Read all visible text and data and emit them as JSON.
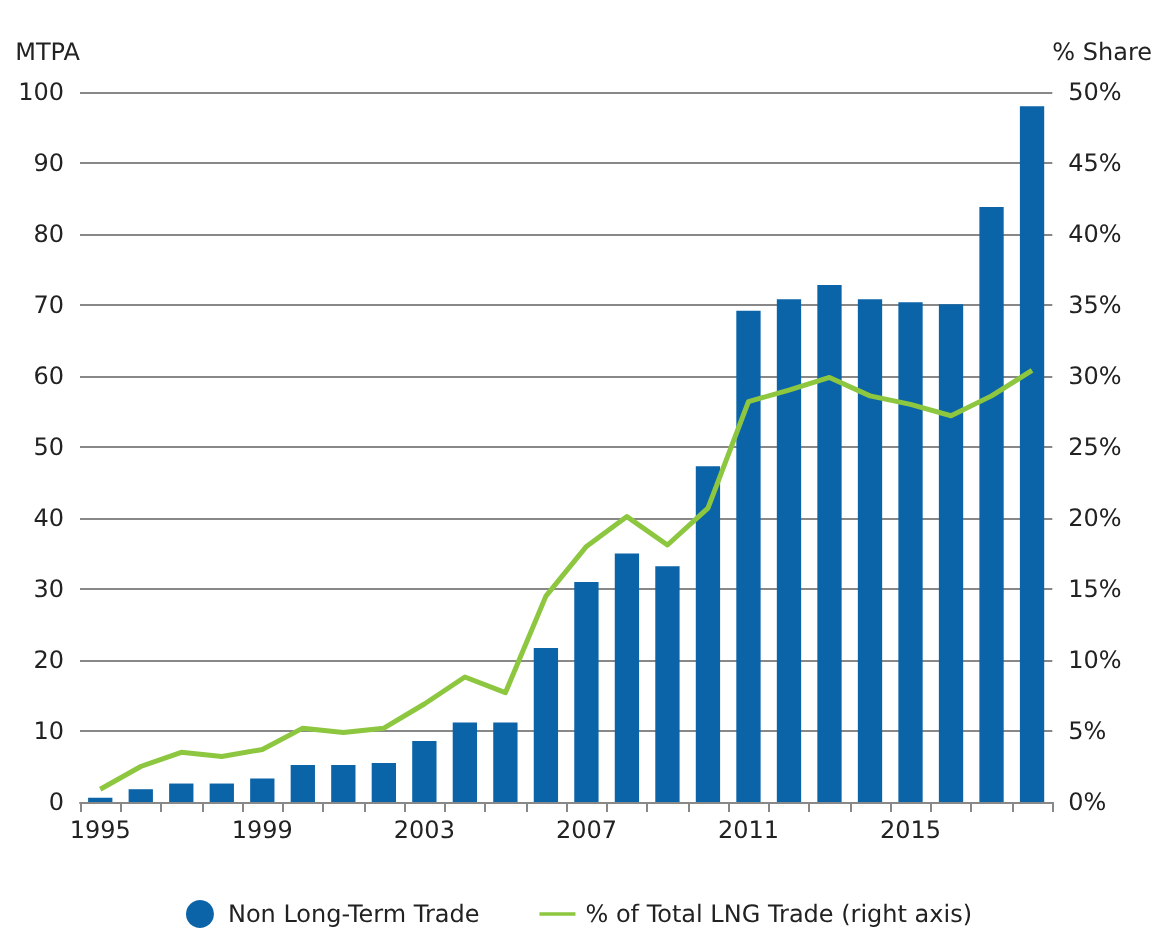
{
  "chart_data": {
    "type": "bar",
    "ylabel": "MTPA",
    "y2label": "% Share",
    "categories": [
      "1995",
      null,
      null,
      null,
      "1999",
      null,
      null,
      null,
      "2003",
      null,
      null,
      null,
      "2007",
      null,
      null,
      null,
      "2011",
      null,
      null,
      null,
      "2015",
      null,
      null,
      null
    ],
    "series": [
      {
        "name": "Non Long-Term Trade",
        "color": "#0b64a8",
        "values": [
          0.6,
          1.8,
          2.6,
          2.6,
          3.3,
          5.2,
          5.2,
          5.5,
          8.6,
          11.2,
          11.2,
          21.7,
          31,
          35,
          33.2,
          47.3,
          69.2,
          70.8,
          72.8,
          70.8,
          70.4,
          70.1,
          83.8,
          98
        ]
      },
      {
        "name": "% of Total LNG Trade (right axis)",
        "type": "line",
        "axis": "y2",
        "color": "#8dc63f",
        "values": [
          0.9,
          2.5,
          3.5,
          3.2,
          3.7,
          5.2,
          4.9,
          5.2,
          6.9,
          8.8,
          7.7,
          14.5,
          18,
          20.1,
          18.1,
          20.7,
          28.2,
          29,
          29.9,
          28.6,
          28,
          27.2,
          28.6,
          30.4
        ]
      }
    ],
    "ylim": [
      0,
      100
    ],
    "yticks": [
      0,
      10,
      20,
      30,
      40,
      50,
      60,
      70,
      80,
      90,
      100
    ],
    "y2lim": [
      0,
      50
    ],
    "y2ticks": [
      {
        "value": 0,
        "label": "0%"
      },
      {
        "value": 5,
        "label": "5%"
      },
      {
        "value": 10,
        "label": "10%"
      },
      {
        "value": 15,
        "label": "15%"
      },
      {
        "value": 20,
        "label": "20%"
      },
      {
        "value": 25,
        "label": "25%"
      },
      {
        "value": 30,
        "label": "30%"
      },
      {
        "value": 35,
        "label": "35%"
      },
      {
        "value": 40,
        "label": "40%"
      },
      {
        "value": 45,
        "label": "45%"
      },
      {
        "value": 50,
        "label": "50%"
      }
    ],
    "grid": "y",
    "legend": "bottom",
    "marker": "none",
    "line_style": "solid"
  }
}
